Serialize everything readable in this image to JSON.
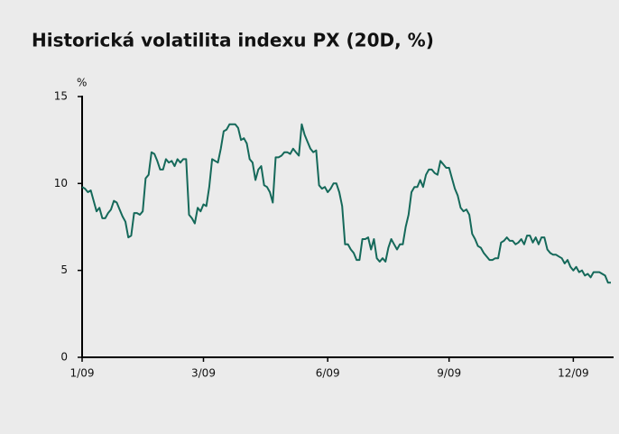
{
  "chart_data": {
    "type": "line",
    "title": "Historická volatilita indexu PX (20D, %)",
    "y_label": "%",
    "categories": [
      "1/09",
      null,
      null,
      null,
      null,
      null,
      null,
      null,
      null,
      null,
      null,
      null,
      null,
      null,
      null,
      null,
      null,
      null,
      null,
      null,
      null,
      null,
      null,
      null,
      null,
      null,
      null,
      null,
      null,
      null,
      null,
      null,
      null,
      null,
      null,
      null,
      null,
      null,
      null,
      null,
      null,
      null,
      "3/09",
      null,
      null,
      null,
      null,
      null,
      null,
      null,
      null,
      null,
      null,
      null,
      null,
      null,
      null,
      null,
      null,
      null,
      null,
      null,
      null,
      null,
      null,
      null,
      null,
      null,
      null,
      null,
      null,
      null,
      null,
      null,
      null,
      null,
      null,
      null,
      null,
      null,
      null,
      null,
      null,
      null,
      null,
      "6/09",
      null,
      null,
      null,
      null,
      null,
      null,
      null,
      null,
      null,
      null,
      null,
      null,
      null,
      null,
      null,
      null,
      null,
      null,
      null,
      null,
      null,
      null,
      null,
      null,
      null,
      null,
      null,
      null,
      null,
      null,
      null,
      null,
      null,
      null,
      null,
      null,
      null,
      null,
      null,
      null,
      null,
      "9/09",
      null,
      null,
      null,
      null,
      null,
      null,
      null,
      null,
      null,
      null,
      null,
      null,
      null,
      null,
      null,
      null,
      null,
      null,
      null,
      null,
      null,
      null,
      null,
      null,
      null,
      null,
      null,
      null,
      null,
      null,
      null,
      null,
      null,
      null,
      null,
      null,
      null,
      null,
      null,
      null,
      null,
      null,
      "12/09",
      null,
      null,
      null,
      null,
      null,
      null,
      null,
      null,
      null,
      null,
      null,
      null,
      null
    ],
    "series": [
      {
        "name": "PX",
        "color": "#15695a",
        "values": [
          9.8,
          9.7,
          9.5,
          9.6,
          9.0,
          8.4,
          8.6,
          8.0,
          8.0,
          8.3,
          8.5,
          9.0,
          8.9,
          8.5,
          8.1,
          7.8,
          6.9,
          7.0,
          8.3,
          8.3,
          8.2,
          8.4,
          10.3,
          10.5,
          11.8,
          11.7,
          11.3,
          10.8,
          10.8,
          11.4,
          11.2,
          11.3,
          11.0,
          11.4,
          11.2,
          11.4,
          11.4,
          8.2,
          8.0,
          7.7,
          8.6,
          8.4,
          8.8,
          8.7,
          9.8,
          11.4,
          11.3,
          11.2,
          12.0,
          13.0,
          13.1,
          13.4,
          13.4,
          13.4,
          13.2,
          12.5,
          12.6,
          12.3,
          11.4,
          11.2,
          10.2,
          10.8,
          11.0,
          9.9,
          9.8,
          9.5,
          8.9,
          11.5,
          11.5,
          11.6,
          11.8,
          11.8,
          11.7,
          12.0,
          11.8,
          11.6,
          13.4,
          12.8,
          12.4,
          12.0,
          11.8,
          11.9,
          9.9,
          9.7,
          9.8,
          9.5,
          9.7,
          10.0,
          10.0,
          9.5,
          8.7,
          6.5,
          6.5,
          6.2,
          6.0,
          5.6,
          5.6,
          6.8,
          6.8,
          6.9,
          6.2,
          6.8,
          5.7,
          5.5,
          5.7,
          5.5,
          6.3,
          6.8,
          6.5,
          6.2,
          6.5,
          6.5,
          7.5,
          8.2,
          9.5,
          9.8,
          9.8,
          10.2,
          9.8,
          10.5,
          10.8,
          10.8,
          10.6,
          10.5,
          11.3,
          11.1,
          10.9,
          10.9,
          10.3,
          9.7,
          9.3,
          8.6,
          8.4,
          8.5,
          8.2,
          7.1,
          6.8,
          6.4,
          6.3,
          6.0,
          5.8,
          5.6,
          5.6,
          5.7,
          5.7,
          6.6,
          6.7,
          6.9,
          6.7,
          6.7,
          6.5,
          6.6,
          6.8,
          6.5,
          7.0,
          7.0,
          6.6,
          6.9,
          6.5,
          6.9,
          6.9,
          6.2,
          6.0,
          5.9,
          5.9,
          5.8,
          5.7,
          5.4,
          5.6,
          5.2,
          5.0,
          5.2,
          4.9,
          5.0,
          4.7,
          4.8,
          4.6,
          4.9,
          4.9,
          4.9,
          4.8,
          4.7,
          4.3,
          4.3
        ]
      }
    ],
    "ylim": [
      0,
      15
    ],
    "yticks": [
      0,
      5,
      10,
      15
    ]
  }
}
